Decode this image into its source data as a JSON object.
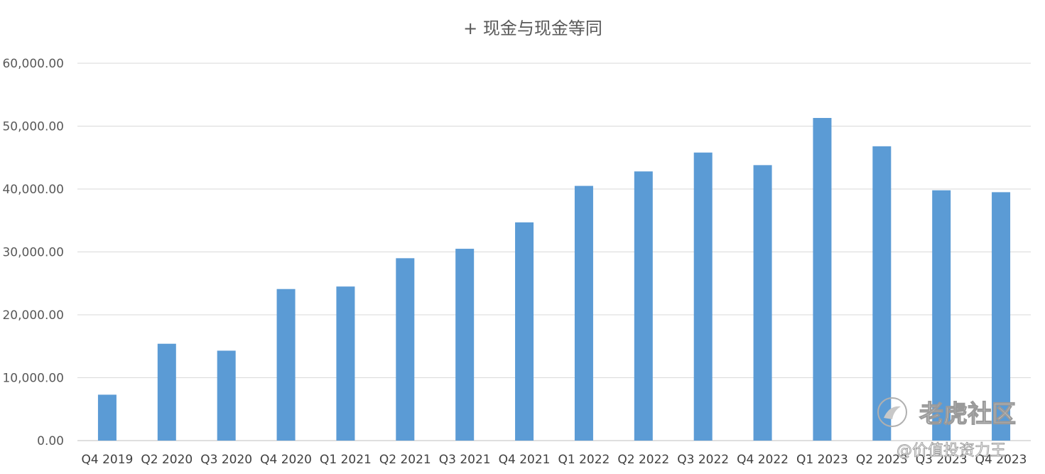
{
  "chart_data": {
    "type": "bar",
    "title": "+ 现金与现金等同",
    "xlabel": "",
    "ylabel": "",
    "ylim": [
      0,
      60000
    ],
    "yticks": [
      "0.00",
      "10,000.00",
      "20,000.00",
      "30,000.00",
      "40,000.00",
      "50,000.00",
      "60,000.00"
    ],
    "ytick_values": [
      0,
      10000,
      20000,
      30000,
      40000,
      50000,
      60000
    ],
    "grid": true,
    "legend": "none",
    "bar_color": "#5b9bd5",
    "categories": [
      "Q4 2019",
      "Q2 2020",
      "Q3 2020",
      "Q4 2020",
      "Q1 2021",
      "Q2 2021",
      "Q3 2021",
      "Q4 2021",
      "Q1 2022",
      "Q2 2022",
      "Q3 2022",
      "Q4 2022",
      "Q1 2023",
      "Q2 2023",
      "Q3 2023",
      "Q4 2023"
    ],
    "values": [
      7300,
      15400,
      14300,
      24100,
      24500,
      29000,
      30500,
      34700,
      40500,
      42800,
      45800,
      43800,
      51300,
      46800,
      39800,
      39500
    ]
  },
  "watermark": {
    "brand": "老虎社区",
    "handle": "@价值投资力王"
  }
}
